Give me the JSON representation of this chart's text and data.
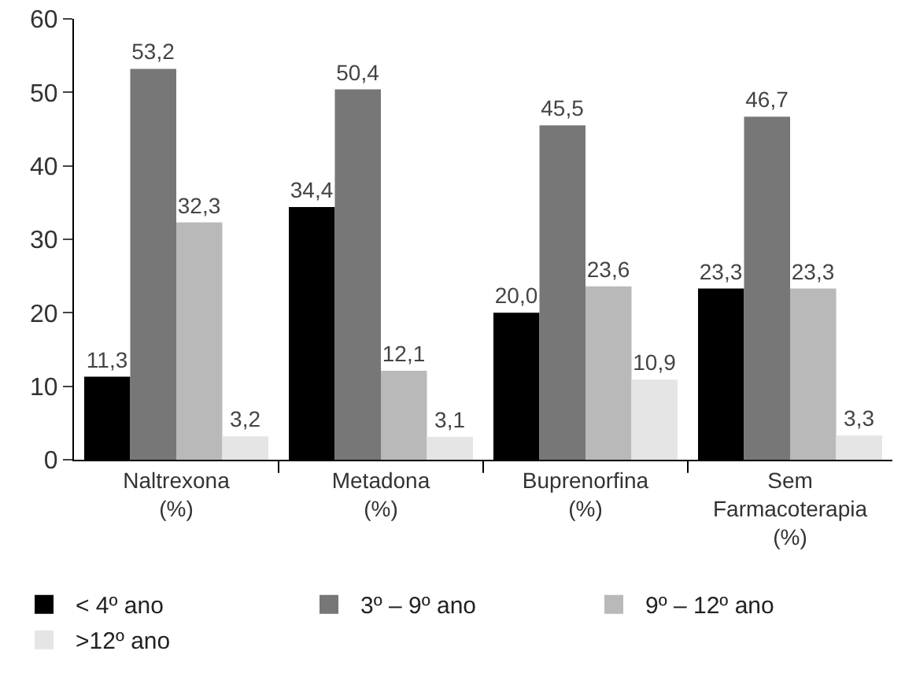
{
  "chart_data": {
    "type": "bar",
    "categories": [
      "Naltrexona\n(%)",
      "Metadona\n(%)",
      "Buprenorfina\n(%)",
      "Sem\nFarmacoterapia\n(%)"
    ],
    "series": [
      {
        "name": "< 4º ano",
        "color": "#000000",
        "values": [
          11.3,
          34.4,
          20.0,
          23.3
        ],
        "value_labels": [
          "11,3",
          "34,4",
          "20,0",
          "23,3"
        ]
      },
      {
        "name": "3º – 9º ano",
        "color": "#777777",
        "values": [
          53.2,
          50.4,
          45.5,
          46.7
        ],
        "value_labels": [
          "53,2",
          "50,4",
          "45,5",
          "46,7"
        ]
      },
      {
        "name": "9º – 12º ano",
        "color": "#b9b9b9",
        "values": [
          32.3,
          12.1,
          23.6,
          23.3
        ],
        "value_labels": [
          "32,3",
          "12,1",
          "23,6",
          "23,3"
        ]
      },
      {
        "name": ">12º ano",
        "color": "#e5e5e5",
        "values": [
          3.2,
          3.1,
          10.9,
          3.3
        ],
        "value_labels": [
          "3,2",
          "3,1",
          "10,9",
          "3,3"
        ]
      }
    ],
    "ylim": [
      0,
      60
    ],
    "yticks": [
      0,
      10,
      20,
      30,
      40,
      50,
      60
    ],
    "grid": false,
    "legend": "bottom"
  }
}
